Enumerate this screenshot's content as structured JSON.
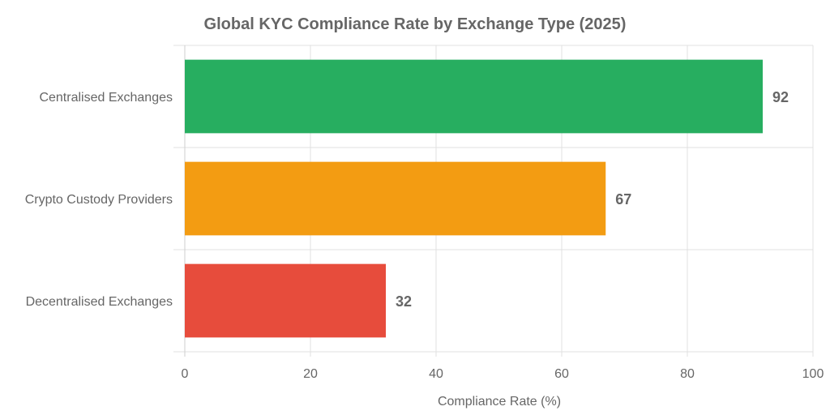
{
  "chart_data": {
    "type": "bar",
    "orientation": "horizontal",
    "title": "Global KYC Compliance Rate by Exchange Type (2025)",
    "categories": [
      "Centralised Exchanges",
      "Crypto Custody Providers",
      "Decentralised Exchanges"
    ],
    "values": [
      92,
      67,
      32
    ],
    "colors": [
      "#27ae60",
      "#f39c12",
      "#e74c3c"
    ],
    "value_labels": [
      "92",
      "67",
      "32"
    ],
    "xlabel": "Compliance Rate (%)",
    "ylabel": "",
    "xlim": [
      0,
      100
    ],
    "x_ticks": [
      0,
      20,
      40,
      60,
      80,
      100
    ],
    "x_tick_labels": [
      "0",
      "20",
      "40",
      "60",
      "80",
      "100"
    ],
    "grid": true,
    "legend": "none"
  }
}
